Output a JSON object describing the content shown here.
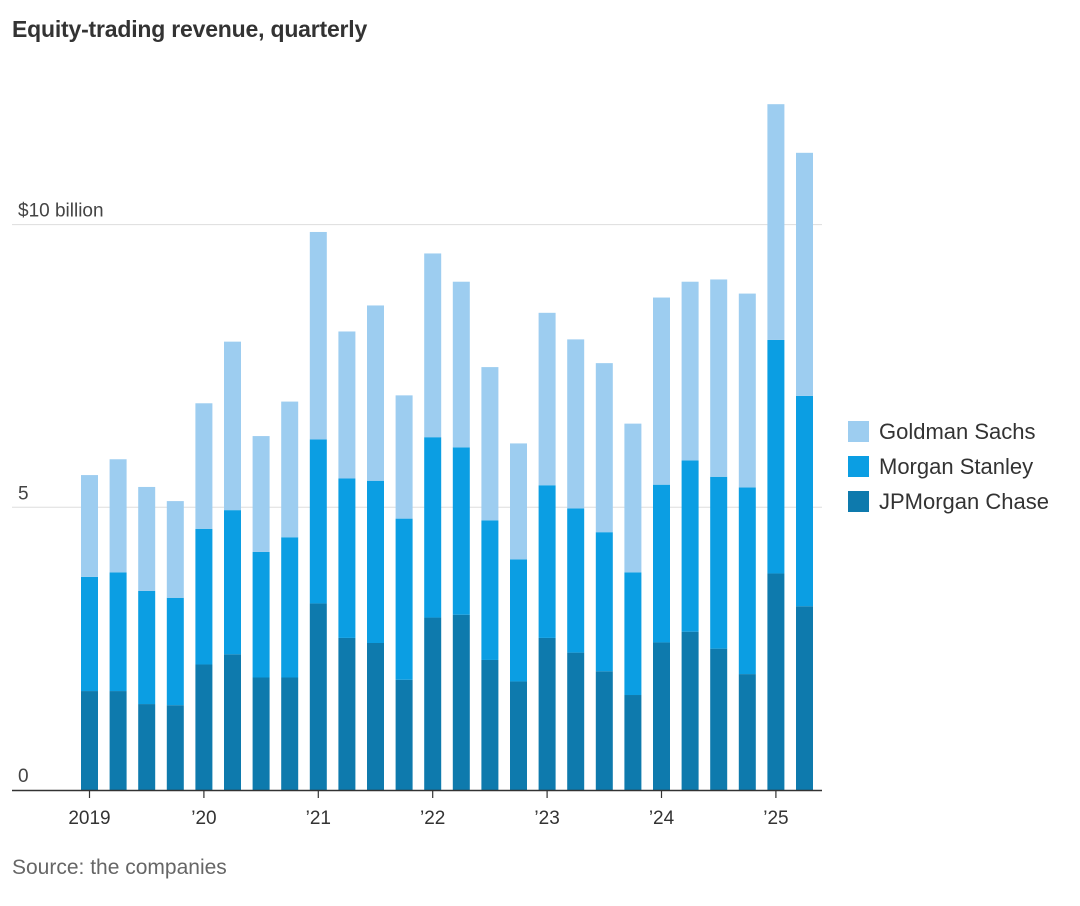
{
  "title": "Equity-trading revenue, quarterly",
  "source": "Source: the companies",
  "chart_data": {
    "type": "bar",
    "stacked": true,
    "title": "Equity-trading revenue, quarterly",
    "xlabel": "",
    "ylabel": "",
    "ylim": [
      0,
      13
    ],
    "grid": true,
    "legend_position": "right",
    "y_ticks": [
      {
        "value": 0,
        "label": "0"
      },
      {
        "value": 5,
        "label": "5"
      },
      {
        "value": 10,
        "label": "$10 billion"
      }
    ],
    "x_ticks": [
      {
        "index": 0,
        "label": "2019"
      },
      {
        "index": 4,
        "label": "’20"
      },
      {
        "index": 8,
        "label": "’21"
      },
      {
        "index": 12,
        "label": "’22"
      },
      {
        "index": 16,
        "label": "’23"
      },
      {
        "index": 20,
        "label": "’24"
      },
      {
        "index": 24,
        "label": "’25"
      }
    ],
    "categories": [
      "Q1 2019",
      "Q2 2019",
      "Q3 2019",
      "Q4 2019",
      "Q1 2020",
      "Q2 2020",
      "Q3 2020",
      "Q4 2020",
      "Q1 2021",
      "Q2 2021",
      "Q3 2021",
      "Q4 2021",
      "Q1 2022",
      "Q2 2022",
      "Q3 2022",
      "Q4 2022",
      "Q1 2023",
      "Q2 2023",
      "Q3 2023",
      "Q4 2023",
      "Q1 2024",
      "Q2 2024",
      "Q3 2024",
      "Q4 2024",
      "Q1 2025",
      "Q2 2025"
    ],
    "series": [
      {
        "name": "JPMorgan Chase",
        "color": "#0e7aad",
        "values": [
          1.75,
          1.75,
          1.52,
          1.5,
          2.22,
          2.4,
          1.99,
          1.99,
          3.3,
          2.69,
          2.6,
          1.95,
          3.05,
          3.1,
          2.3,
          1.92,
          2.69,
          2.43,
          2.1,
          1.68,
          2.61,
          2.8,
          2.5,
          2.05,
          3.83,
          3.25
        ]
      },
      {
        "name": "Morgan Stanley",
        "color": "#0b9ee3",
        "values": [
          2.02,
          2.1,
          2.0,
          1.9,
          2.4,
          2.55,
          2.22,
          2.48,
          2.9,
          2.82,
          2.87,
          2.85,
          3.19,
          2.96,
          2.47,
          2.16,
          2.7,
          2.55,
          2.46,
          2.17,
          2.79,
          3.03,
          3.04,
          3.3,
          4.13,
          3.72
        ]
      },
      {
        "name": "Goldman Sachs",
        "color": "#9dcdf0",
        "values": [
          1.8,
          2.0,
          1.84,
          1.71,
          2.22,
          2.98,
          2.05,
          2.4,
          3.67,
          2.6,
          3.1,
          2.18,
          3.25,
          2.93,
          2.71,
          2.05,
          3.05,
          2.99,
          2.99,
          2.63,
          3.31,
          3.16,
          3.49,
          3.43,
          4.17,
          4.3
        ]
      }
    ]
  }
}
